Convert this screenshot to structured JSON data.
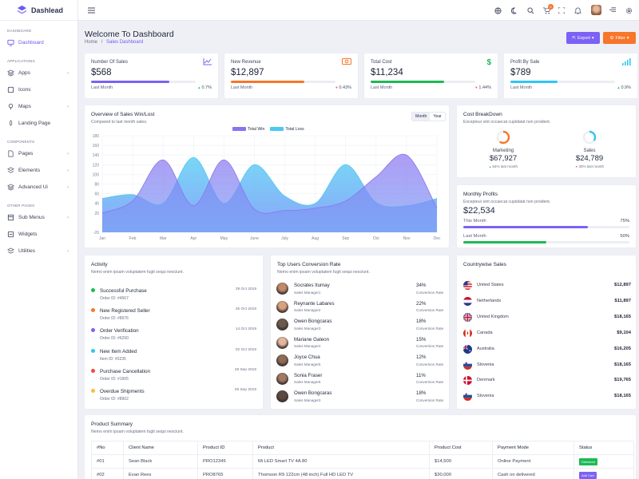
{
  "brand": {
    "name": "Dashlead"
  },
  "sidebar": {
    "sections": [
      {
        "title": "Dashboard",
        "items": [
          {
            "label": "Dashboard",
            "icon": "monitor-icon",
            "active": true,
            "chevron": false
          }
        ]
      },
      {
        "title": "Applications",
        "items": [
          {
            "label": "Apps",
            "icon": "layers-icon",
            "chevron": true
          },
          {
            "label": "Icons",
            "icon": "icons-icon",
            "chevron": false
          },
          {
            "label": "Maps",
            "icon": "map-icon",
            "chevron": true
          },
          {
            "label": "Landing Page",
            "icon": "rocket-icon",
            "chevron": false
          }
        ]
      },
      {
        "title": "Components",
        "items": [
          {
            "label": "Pages",
            "icon": "pages-icon",
            "chevron": true
          },
          {
            "label": "Elements",
            "icon": "elements-icon",
            "chevron": true
          },
          {
            "label": "Advanced Ui",
            "icon": "advanced-icon",
            "chevron": true
          }
        ]
      },
      {
        "title": "Other Pages",
        "items": [
          {
            "label": "Sub Menus",
            "icon": "submenu-icon",
            "chevron": true
          },
          {
            "label": "Widgets",
            "icon": "widgets-icon",
            "chevron": false
          },
          {
            "label": "Utilities",
            "icon": "utilities-icon",
            "chevron": true
          }
        ]
      }
    ]
  },
  "topbar": {
    "cart_count": "5"
  },
  "header": {
    "title": "Welcome To Dashboard",
    "breadcrumb": [
      "Home",
      "Sales Dashboard"
    ],
    "export_label": "Export",
    "filter_label": "Filter"
  },
  "colors": {
    "purple": "#7b61f5",
    "orange": "#f7762a",
    "green": "#1db954",
    "cyan": "#2fc6f6",
    "red": "#f3474b",
    "yellow": "#f9bf3b",
    "blue": "#1e88ff"
  },
  "stats": [
    {
      "title": "Number Of Sales",
      "value": "$568",
      "sub": "Last Month",
      "change": "0.7%",
      "dir": "up",
      "color": "#7b61f5",
      "fill": 0.75,
      "icon": "trend-chart-icon"
    },
    {
      "title": "New Revenue",
      "value": "$12,897",
      "sub": "Last Month",
      "change": "0.43%",
      "dir": "down",
      "color": "#f7762a",
      "fill": 0.7,
      "icon": "money-icon"
    },
    {
      "title": "Total Cost",
      "value": "$11,234",
      "sub": "Last Month",
      "change": "1.44%",
      "dir": "down",
      "color": "#1db954",
      "fill": 0.7,
      "icon": "dollar-icon"
    },
    {
      "title": "Profit By Sale",
      "value": "$789",
      "sub": "Last Month",
      "change": "0.9%",
      "dir": "up",
      "color": "#2fc6f6",
      "fill": 0.45,
      "icon": "signal-icon"
    }
  ],
  "overview": {
    "title": "Overview of Sales Win/Lost",
    "subtitle": "Compared to last month sales.",
    "tabs": [
      "Month",
      "Year"
    ]
  },
  "chart_data": {
    "type": "area",
    "categories": [
      "Jan",
      "Feb",
      "Mar",
      "Apr",
      "May",
      "June",
      "July",
      "Aug",
      "Sep",
      "Oct",
      "Nov",
      "Dec"
    ],
    "series": [
      {
        "name": "Total Win",
        "color": "#8b72f0",
        "values": [
          20,
          45,
          130,
          35,
          130,
          28,
          25,
          30,
          45,
          95,
          140,
          30
        ]
      },
      {
        "name": "Total Loss",
        "color": "#4cc9f3",
        "values": [
          50,
          58,
          40,
          135,
          40,
          120,
          55,
          40,
          120,
          42,
          35,
          50
        ]
      }
    ],
    "ylim": [
      -20,
      180
    ],
    "yticks": [
      -20,
      20,
      40,
      60,
      80,
      100,
      120,
      140,
      160,
      180
    ],
    "grid": true,
    "legend": "top-center"
  },
  "cost": {
    "title": "Cost BreakDown",
    "subtitle": "Excepteur sint occaecat cupidatat non proident.",
    "items": [
      {
        "label": "Marketing",
        "value": "$67,927",
        "change": "54% last month",
        "dir": "up",
        "color": "#f7762a",
        "fraction": 0.6
      },
      {
        "label": "Sales",
        "value": "$24,789",
        "change": "33% last month",
        "dir": "down",
        "color": "#2fc6f6",
        "fraction": 0.35
      }
    ]
  },
  "profits": {
    "title": "Monthly Profits",
    "subtitle": "Excepteur sint occaecat cupidatat non proident.",
    "value": "$22,534",
    "rows": [
      {
        "label": "This Month",
        "pct": "75%",
        "fraction": 0.75,
        "color": "#7b61f5"
      },
      {
        "label": "Last Month",
        "pct": "50%",
        "fraction": 0.5,
        "color": "#1db954"
      }
    ]
  },
  "activity": {
    "title": "Activity",
    "subtitle": "Nemo enim ipsam voluptatem fugit sequi nesciunt.",
    "items": [
      {
        "title": "Successful Purchase",
        "order": "Order ID: #4567",
        "date": "29 Oct 2019",
        "color": "#1db954"
      },
      {
        "title": "New Registered Seller",
        "order": "Order ID: #8976",
        "date": "25 Oct 2019",
        "color": "#f7762a"
      },
      {
        "title": "Order Verification",
        "order": "Order ID: #6290",
        "date": "14 Oct 2019",
        "color": "#7b61f5"
      },
      {
        "title": "New Item Added",
        "order": "Item ID: #0235",
        "date": "02 Oct 2019",
        "color": "#2fc6f6"
      },
      {
        "title": "Purchase Cancellation",
        "order": "Order ID: #1905",
        "date": "28 Sep 2019",
        "color": "#f3474b"
      },
      {
        "title": "Overdue Shipments",
        "order": "Order ID: #8902",
        "date": "25 Sep 2019",
        "color": "#f9bf3b"
      }
    ]
  },
  "users": {
    "title": "Top Users Conversion Rate",
    "subtitle": "Nemo enim ipsam voluptatem fugit sequi nesciunt.",
    "items": [
      {
        "name": "Socrates Itumay",
        "role": "Sales Manager1",
        "pct": "34%",
        "label": "Conversion Rate"
      },
      {
        "name": "Reynante Labares",
        "role": "Sales Manager2",
        "pct": "22%",
        "label": "Conversion Rate"
      },
      {
        "name": "Owen Bongcaras",
        "role": "Sales Manager3",
        "pct": "18%",
        "label": "Conversion Rate"
      },
      {
        "name": "Mariane Galeon",
        "role": "Sales Manager4",
        "pct": "15%",
        "label": "Conversion Rate"
      },
      {
        "name": "Joyce Chua",
        "role": "Sales Manager5",
        "pct": "12%",
        "label": "Conversion Rate"
      },
      {
        "name": "Sonia Fraser",
        "role": "Sales Manager5",
        "pct": "11%",
        "label": "Conversion Rate"
      },
      {
        "name": "Owen Bongcaras",
        "role": "Sales Manager3",
        "pct": "18%",
        "label": "Conversion Rate"
      }
    ]
  },
  "countries": {
    "title": "Countrywise Sales",
    "items": [
      {
        "name": "United States",
        "value": "$12,897",
        "flag": "us-flag-icon"
      },
      {
        "name": "Netherlands",
        "value": "$11,897",
        "flag": "netherlands-flag-icon"
      },
      {
        "name": "United Kingdom",
        "value": "$18,165",
        "flag": "uk-flag-icon"
      },
      {
        "name": "Canada",
        "value": "$9,104",
        "flag": "canada-flag-icon"
      },
      {
        "name": "Australia",
        "value": "$16,205",
        "flag": "australia-flag-icon"
      },
      {
        "name": "Slovenia",
        "value": "$18,165",
        "flag": "slovenia-flag-icon"
      },
      {
        "name": "Denmark",
        "value": "$19,765",
        "flag": "denmark-flag-icon"
      },
      {
        "name": "Slovenia",
        "value": "$18,165",
        "flag": "slovenia-flag-icon"
      }
    ]
  },
  "product": {
    "title": "Product Summary",
    "subtitle": "Nemo enim ipsam voluptatem fugit sequi nesciunt.",
    "columns": [
      "#No",
      "Client Name",
      "Product ID",
      "Product",
      "Product Cost",
      "Payment Mode",
      "Status"
    ],
    "rows": [
      {
        "no": "#01",
        "client": "Sean Black",
        "pid": "PRO12345",
        "product": "Mi LED Smart TV 4A 80",
        "cost": "$14,500",
        "mode": "Online Payment",
        "status": "Delivered",
        "status_color": "#1db954"
      },
      {
        "no": "#02",
        "client": "Evan Rees",
        "pid": "PRO8765",
        "product": "Thomson R9 122cm (48 inch) Full HD LED TV",
        "cost": "$30,000",
        "mode": "Cash on delivered",
        "status": "Add Cart",
        "status_color": "#7b61f5"
      }
    ]
  }
}
